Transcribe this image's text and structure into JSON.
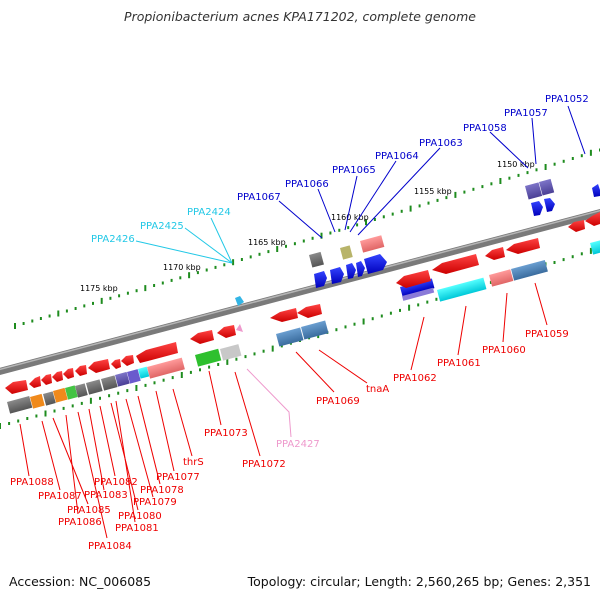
{
  "header": {
    "title": "Propionibacterium acnes KPA171202, complete genome"
  },
  "footer": {
    "accession": "Accession: NC_006085",
    "topology": "Topology: circular; Length: 2,560,265 bp; Genes: 2,351"
  },
  "colors": {
    "forward_label": "#0000cc",
    "reverse_label": "#ee0000",
    "rna_label": "#22c8e6",
    "pseudo_label": "#ee99cc",
    "scale_tick": "#1e8c1e",
    "backbone": "#7a7a7a"
  },
  "scale_labels": [
    "1175 kbp",
    "1170 kbp",
    "1165 kbp",
    "1160 kbp",
    "1155 kbp",
    "1150 kbp"
  ],
  "gene_labels": {
    "forward": [
      "PPA1067",
      "PPA1066",
      "PPA1065",
      "PPA1064",
      "PPA1063",
      "PPA1058",
      "PPA1057",
      "PPA1052"
    ],
    "rna": [
      "PPA2426",
      "PPA2425",
      "PPA2424"
    ],
    "reverse": [
      "PPA1088",
      "PPA1087",
      "PPA1085",
      "PPA1086",
      "PPA1084",
      "PPA1083",
      "PPA1082",
      "PPA1080",
      "PPA1081",
      "PPA1079",
      "PPA1078",
      "PPA1077",
      "thrS",
      "PPA1073",
      "PPA1072",
      "PPA1069",
      "tnaA",
      "PPA1062",
      "PPA1061",
      "PPA1060",
      "PPA1059"
    ],
    "pseudo": [
      "PPA2427"
    ]
  }
}
